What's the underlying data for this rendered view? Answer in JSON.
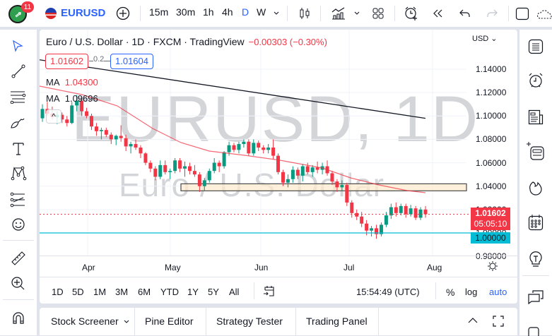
{
  "topbar": {
    "notification_count": "11",
    "symbol": "EURUSD",
    "intervals": [
      "15m",
      "30m",
      "1h",
      "4h",
      "D",
      "W"
    ],
    "active_interval": "D",
    "colors": {
      "accent": "#2962ff"
    }
  },
  "legend": {
    "title": "Euro / U.S. Dollar · 1D · FXCM · TradingView",
    "change": "−0.00303 (−0.30%)",
    "bid": "1.01602",
    "spread": "0.2",
    "ask": "1.01604",
    "ma1_label": "MA",
    "ma1_value": "1.04300",
    "ma2_label": "MA",
    "ma2_value": "1.09696"
  },
  "watermark": {
    "line1": "EURUSD, 1D",
    "line2": "Euro / U.S. Dollar"
  },
  "price_axis": {
    "currency": "USD",
    "last_price": "1.01602",
    "countdown": "05:05:10",
    "level_label": "1.00000"
  },
  "time_axis": {
    "labels": [
      "Apr",
      "May",
      "Jun",
      "Jul",
      "Aug"
    ]
  },
  "range_bar": {
    "ranges": [
      "1D",
      "5D",
      "1M",
      "3M",
      "6M",
      "YTD",
      "1Y",
      "5Y",
      "All"
    ],
    "clock": "15:54:49 (UTC)",
    "percent": "%",
    "log": "log",
    "auto": "auto"
  },
  "bottom_panel": {
    "tabs": [
      "Stock Screener",
      "Pine Editor",
      "Strategy Tester",
      "Trading Panel"
    ]
  },
  "chart_data": {
    "type": "candlestick",
    "title": "Euro / U.S. Dollar · 1D · FXCM · TradingView",
    "xlabel": "",
    "ylabel": "USD",
    "x_ticks": [
      "Apr",
      "May",
      "Jun",
      "Jul",
      "Aug"
    ],
    "y_ticks": [
      1.14,
      1.12,
      1.1,
      1.08,
      1.06,
      1.04,
      1.02,
      1.0,
      0.98
    ],
    "ylim": [
      0.976,
      1.162
    ],
    "last_price": 1.01602,
    "change": -0.00303,
    "change_pct": -0.3,
    "indicators": [
      {
        "name": "MA",
        "value": 1.043,
        "color": "#f23645"
      },
      {
        "name": "MA",
        "value": 1.09696,
        "color": "#131722"
      }
    ],
    "annotations": [
      {
        "type": "trendline",
        "from": {
          "x": "late Feb",
          "y": 1.14
        },
        "to": {
          "x": "late Jul",
          "y": 1.098
        },
        "color": "#131722"
      },
      {
        "type": "rectangle",
        "y_low": 1.036,
        "y_high": 1.042,
        "from": "early May",
        "color": "#ffe0b2"
      },
      {
        "type": "horizontal_line",
        "y": 1.0,
        "color": "#00bcd4"
      }
    ],
    "candles_ohlc": [
      [
        1.098,
        1.11,
        1.095,
        1.106
      ],
      [
        1.106,
        1.112,
        1.1,
        1.102
      ],
      [
        1.102,
        1.108,
        1.097,
        1.099
      ],
      [
        1.099,
        1.104,
        1.093,
        1.101
      ],
      [
        1.101,
        1.103,
        1.094,
        1.097
      ],
      [
        1.097,
        1.1,
        1.091,
        1.094
      ],
      [
        1.094,
        1.112,
        1.093,
        1.109
      ],
      [
        1.109,
        1.118,
        1.104,
        1.113
      ],
      [
        1.113,
        1.115,
        1.1,
        1.104
      ],
      [
        1.104,
        1.107,
        1.098,
        1.1
      ],
      [
        1.1,
        1.102,
        1.088,
        1.091
      ],
      [
        1.091,
        1.094,
        1.083,
        1.087
      ],
      [
        1.087,
        1.09,
        1.08,
        1.088
      ],
      [
        1.088,
        1.09,
        1.082,
        1.084
      ],
      [
        1.084,
        1.086,
        1.076,
        1.08
      ],
      [
        1.08,
        1.084,
        1.075,
        1.083
      ],
      [
        1.083,
        1.092,
        1.078,
        1.081
      ],
      [
        1.081,
        1.084,
        1.07,
        1.074
      ],
      [
        1.074,
        1.078,
        1.068,
        1.076
      ],
      [
        1.076,
        1.08,
        1.071,
        1.073
      ],
      [
        1.073,
        1.075,
        1.064,
        1.068
      ],
      [
        1.068,
        1.069,
        1.058,
        1.06
      ],
      [
        1.06,
        1.062,
        1.052,
        1.055
      ],
      [
        1.055,
        1.057,
        1.045,
        1.048
      ],
      [
        1.048,
        1.062,
        1.046,
        1.058
      ],
      [
        1.058,
        1.062,
        1.05,
        1.052
      ],
      [
        1.052,
        1.055,
        1.046,
        1.053
      ],
      [
        1.053,
        1.064,
        1.051,
        1.062
      ],
      [
        1.062,
        1.064,
        1.052,
        1.055
      ],
      [
        1.055,
        1.061,
        1.048,
        1.057
      ],
      [
        1.057,
        1.06,
        1.05,
        1.053
      ],
      [
        1.053,
        1.058,
        1.048,
        1.05
      ],
      [
        1.05,
        1.052,
        1.035,
        1.04
      ],
      [
        1.04,
        1.047,
        1.036,
        1.045
      ],
      [
        1.045,
        1.055,
        1.043,
        1.053
      ],
      [
        1.053,
        1.064,
        1.051,
        1.06
      ],
      [
        1.06,
        1.062,
        1.052,
        1.057
      ],
      [
        1.057,
        1.07,
        1.055,
        1.069
      ],
      [
        1.069,
        1.078,
        1.066,
        1.075
      ],
      [
        1.075,
        1.077,
        1.069,
        1.071
      ],
      [
        1.071,
        1.078,
        1.068,
        1.076
      ],
      [
        1.076,
        1.08,
        1.073,
        1.078
      ],
      [
        1.078,
        1.08,
        1.066,
        1.068
      ],
      [
        1.068,
        1.08,
        1.066,
        1.077
      ],
      [
        1.077,
        1.079,
        1.07,
        1.073
      ],
      [
        1.073,
        1.075,
        1.068,
        1.071
      ],
      [
        1.071,
        1.076,
        1.068,
        1.073
      ],
      [
        1.073,
        1.08,
        1.063,
        1.066
      ],
      [
        1.066,
        1.068,
        1.05,
        1.052
      ],
      [
        1.052,
        1.054,
        1.04,
        1.043
      ],
      [
        1.043,
        1.05,
        1.039,
        1.046
      ],
      [
        1.046,
        1.057,
        1.043,
        1.054
      ],
      [
        1.054,
        1.056,
        1.046,
        1.049
      ],
      [
        1.049,
        1.059,
        1.044,
        1.057
      ],
      [
        1.057,
        1.06,
        1.05,
        1.052
      ],
      [
        1.052,
        1.058,
        1.048,
        1.056
      ],
      [
        1.056,
        1.061,
        1.051,
        1.054
      ],
      [
        1.054,
        1.06,
        1.05,
        1.057
      ],
      [
        1.057,
        1.062,
        1.049,
        1.051
      ],
      [
        1.051,
        1.053,
        1.041,
        1.044
      ],
      [
        1.044,
        1.046,
        1.035,
        1.039
      ],
      [
        1.039,
        1.045,
        1.036,
        1.041
      ],
      [
        1.041,
        1.043,
        1.023,
        1.026
      ],
      [
        1.026,
        1.028,
        1.013,
        1.017
      ],
      [
        1.017,
        1.02,
        1.011,
        1.014
      ],
      [
        1.014,
        1.018,
        1.005,
        1.008
      ],
      [
        1.008,
        1.011,
        0.998,
        1.002
      ],
      [
        1.002,
        1.006,
        0.997,
        1.004
      ],
      [
        1.004,
        1.007,
        0.995,
        0.999
      ],
      [
        0.999,
        1.009,
        0.997,
        1.007
      ],
      [
        1.007,
        1.018,
        1.005,
        1.015
      ],
      [
        1.015,
        1.025,
        1.012,
        1.022
      ],
      [
        1.022,
        1.026,
        1.014,
        1.017
      ],
      [
        1.017,
        1.025,
        1.015,
        1.023
      ],
      [
        1.023,
        1.025,
        1.013,
        1.016
      ],
      [
        1.016,
        1.024,
        1.014,
        1.021
      ],
      [
        1.021,
        1.023,
        1.011,
        1.013
      ],
      [
        1.013,
        1.022,
        1.011,
        1.02
      ],
      [
        1.02,
        1.023,
        1.013,
        1.016
      ]
    ]
  }
}
